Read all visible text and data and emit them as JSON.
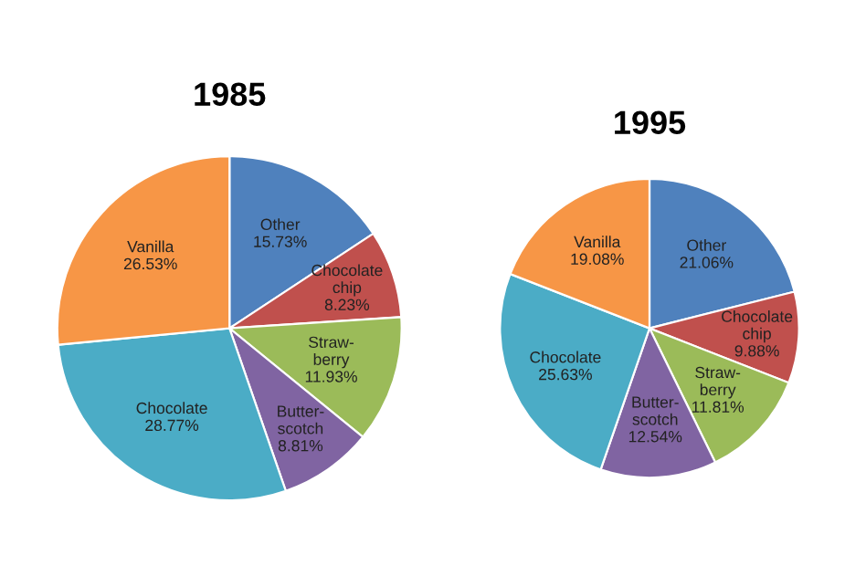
{
  "chart_data": [
    {
      "type": "pie",
      "title": "1985",
      "categories": [
        "Other",
        "Chocolate\nchip",
        "Straw-\nberry",
        "Butter-\nscotch",
        "Chocolate",
        "Vanilla"
      ],
      "values": [
        15.73,
        8.23,
        11.93,
        8.81,
        28.77,
        26.53
      ],
      "value_labels": [
        "15.73%",
        "8.23%",
        "11.93%",
        "8.81%",
        "28.77%",
        "26.53%"
      ],
      "colors": [
        "#4f81bd",
        "#c0504d",
        "#9bbb59",
        "#8064a2",
        "#4bacc6",
        "#f79646"
      ]
    },
    {
      "type": "pie",
      "title": "1995",
      "categories": [
        "Other",
        "Chocolate\nchip",
        "Straw-\nberry",
        "Butter-\nscotch",
        "Chocolate",
        "Vanilla"
      ],
      "values": [
        21.06,
        9.88,
        11.81,
        12.54,
        25.63,
        19.08
      ],
      "value_labels": [
        "21.06%",
        "9.88%",
        "11.81%",
        "12.54%",
        "25.63%",
        "19.08%"
      ],
      "colors": [
        "#4f81bd",
        "#c0504d",
        "#9bbb59",
        "#8064a2",
        "#4bacc6",
        "#f79646"
      ]
    }
  ]
}
